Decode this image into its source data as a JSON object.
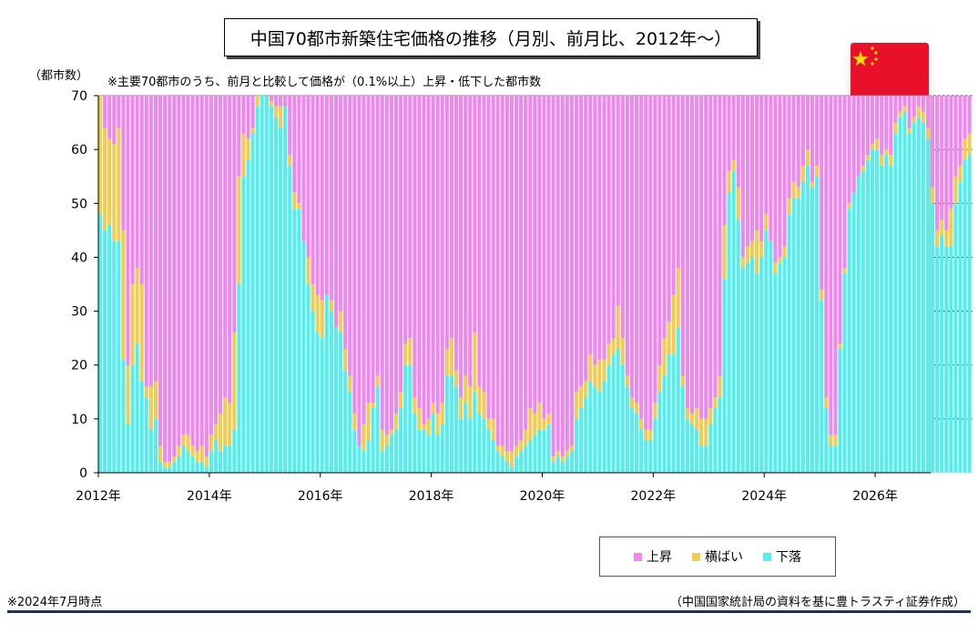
{
  "chart_data": {
    "type": "bar",
    "stacked": true,
    "title": "中国70都市新築住宅価格の推移（月別、前月比、2012年〜）",
    "subtitle": "※主要70都市のうち、前月と比較して価格が（0.1%以上）上昇・低下した都市数",
    "ylabel": "（都市数）",
    "ylim": [
      0,
      70
    ],
    "yticks": [
      0,
      10,
      20,
      30,
      40,
      50,
      60,
      70
    ],
    "xlim": [
      2012.0,
      2027.0
    ],
    "xticks": [
      {
        "value": 2012,
        "label": "2012年"
      },
      {
        "value": 2014,
        "label": "2014年"
      },
      {
        "value": 2016,
        "label": "2016年"
      },
      {
        "value": 2018,
        "label": "2018年"
      },
      {
        "value": 2020,
        "label": "2020年"
      },
      {
        "value": 2022,
        "label": "2022年"
      },
      {
        "value": 2024,
        "label": "2024年"
      },
      {
        "value": 2026,
        "label": "2026年"
      }
    ],
    "start": "2012-01",
    "series_names": [
      "上昇",
      "横ばい",
      "下落"
    ],
    "down": [
      48,
      45,
      46,
      43,
      43,
      21,
      9,
      20,
      24,
      17,
      14,
      8,
      10,
      2,
      1,
      1,
      2,
      3,
      5,
      4,
      3,
      2,
      2,
      1,
      4,
      6,
      4,
      5,
      5,
      8,
      35,
      55,
      58,
      63,
      68,
      70,
      70,
      68,
      66,
      64,
      68,
      57,
      49,
      49,
      43,
      35,
      30,
      26,
      25,
      33,
      30,
      27,
      26,
      19,
      15,
      8,
      5,
      4,
      6,
      12,
      16,
      4,
      5,
      7,
      8,
      12,
      20,
      20,
      11,
      8,
      8,
      7,
      11,
      7,
      9,
      18,
      18,
      16,
      10,
      13,
      10,
      15,
      11,
      10,
      8,
      6,
      4,
      3,
      2,
      1,
      3,
      4,
      5,
      6,
      7,
      8,
      8,
      9,
      2,
      3,
      2,
      3,
      4,
      10,
      12,
      14,
      17,
      16,
      15,
      17,
      20,
      22,
      23,
      20,
      16,
      12,
      11,
      8,
      6,
      6,
      10,
      15,
      18,
      22,
      22,
      27,
      16,
      10,
      9,
      8,
      5,
      5,
      9,
      12,
      14,
      36,
      52,
      56,
      47,
      38,
      39,
      40,
      37,
      40,
      45,
      43,
      37,
      39,
      40,
      48,
      51,
      51,
      54,
      57,
      53,
      55,
      32,
      12,
      5,
      5,
      23,
      37,
      49,
      52,
      55,
      56,
      58,
      60,
      60,
      57,
      59,
      57,
      63,
      66,
      67,
      63,
      65,
      66,
      65,
      62,
      50,
      42,
      44,
      42,
      42,
      50,
      54,
      58,
      59
    ],
    "flat": [
      22,
      19,
      16,
      18,
      21,
      24,
      11,
      15,
      14,
      18,
      2,
      8,
      7,
      3,
      1,
      1,
      1,
      2,
      2,
      3,
      2,
      2,
      3,
      2,
      3,
      3,
      7,
      9,
      8,
      18,
      20,
      8,
      4,
      1,
      2,
      0,
      0,
      1,
      2,
      4,
      0,
      2,
      3,
      1,
      0,
      5,
      5,
      7,
      7,
      0,
      2,
      0,
      4,
      4,
      3,
      3,
      0,
      5,
      7,
      1,
      2,
      4,
      2,
      1,
      3,
      3,
      4,
      5,
      3,
      4,
      1,
      3,
      2,
      4,
      4,
      5,
      7,
      3,
      4,
      5,
      6,
      11,
      5,
      5,
      2,
      4,
      1,
      2,
      2,
      3,
      2,
      2,
      3,
      6,
      4,
      5,
      2,
      2,
      1,
      1,
      1,
      1,
      1,
      5,
      4,
      3,
      5,
      4,
      6,
      4,
      4,
      3,
      8,
      5,
      2,
      2,
      2,
      2,
      2,
      2,
      3,
      5,
      7,
      6,
      11,
      11,
      2,
      2,
      2,
      4,
      5,
      5,
      3,
      2,
      4,
      10,
      4,
      2,
      6,
      2,
      3,
      3,
      8,
      3,
      3,
      0,
      2,
      1,
      2,
      3,
      3,
      2,
      3,
      3,
      1,
      2,
      2,
      2,
      2,
      2,
      1,
      1,
      1,
      0,
      0,
      1,
      1,
      1,
      2,
      2,
      1,
      2,
      2,
      1,
      1,
      1,
      1,
      2,
      2,
      2,
      3,
      3,
      3,
      3,
      7,
      5,
      3,
      4,
      4
    ]
  },
  "legend": {
    "up_label": "上昇",
    "flat_label": "横ばい",
    "down_label": "下落"
  },
  "colors": {
    "up": "#ee88ee",
    "flat": "#f0cc55",
    "down": "#55eeee",
    "flag_red": "#e8102a",
    "flag_star": "#ffde00"
  },
  "notes": {
    "left": "※2024年7月時点",
    "right": "（中国国家統計局の資料を基に豊トラスティ証券作成）"
  },
  "flag_icon": "china-flag-icon"
}
